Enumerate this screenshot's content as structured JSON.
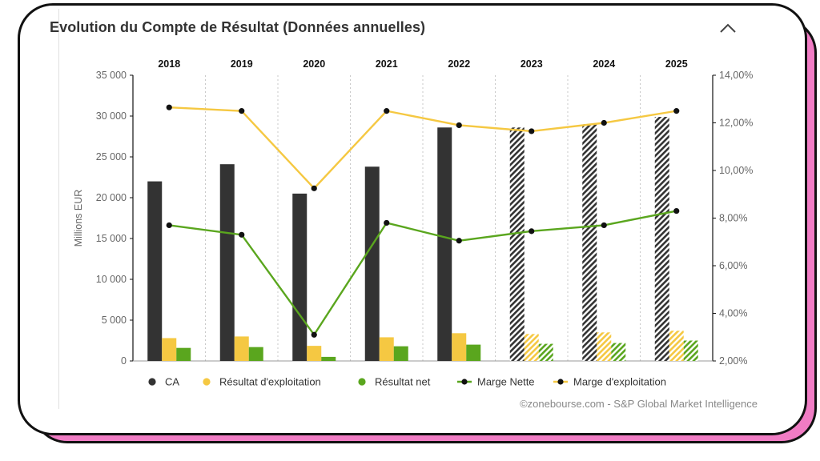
{
  "header": {
    "title": "Evolution du Compte de Résultat (Données annuelles)",
    "collapse_icon": "chevron-up-icon"
  },
  "chart_data": {
    "type": "bar",
    "title": "Evolution du Compte de Résultat (Données annuelles)",
    "categories": [
      "2018",
      "2019",
      "2020",
      "2021",
      "2022",
      "2023",
      "2024",
      "2025"
    ],
    "estimated_from_index": 5,
    "ylabel": "Millions EUR",
    "ylim": [
      0,
      35000
    ],
    "y_ticks": [
      "0",
      "5 000",
      "10 000",
      "15 000",
      "20 000",
      "25 000",
      "30 000",
      "35 000"
    ],
    "y2lim": [
      2,
      14
    ],
    "y2_ticks": [
      "2,00%",
      "4,00%",
      "6,00%",
      "8,00%",
      "10,00%",
      "12,00%",
      "14,00%"
    ],
    "grid": "vertical dotted separators between years",
    "legend_position": "bottom",
    "series": [
      {
        "name": "CA",
        "kind": "bar",
        "axis": "left",
        "color": "#333333",
        "values": [
          22000,
          24100,
          20500,
          23800,
          28600,
          28600,
          29000,
          29900
        ]
      },
      {
        "name": "Résultat d'exploitation",
        "kind": "bar",
        "axis": "left",
        "color": "#f5c842",
        "values": [
          2800,
          3000,
          1850,
          2900,
          3400,
          3300,
          3500,
          3700
        ]
      },
      {
        "name": "Résultat net",
        "kind": "bar",
        "axis": "left",
        "color": "#5aa61e",
        "values": [
          1600,
          1700,
          500,
          1800,
          2000,
          2100,
          2200,
          2500
        ]
      },
      {
        "name": "Marge Nette",
        "kind": "line",
        "axis": "right",
        "color": "#5aa61e",
        "values": [
          7.7,
          7.3,
          3.1,
          7.8,
          7.05,
          7.45,
          7.7,
          8.3
        ]
      },
      {
        "name": "Marge d'exploitation",
        "kind": "line",
        "axis": "right",
        "color": "#f5c842",
        "values": [
          12.65,
          12.5,
          9.25,
          12.5,
          11.9,
          11.65,
          12.0,
          12.5
        ]
      }
    ],
    "credit": "©zonebourse.com - S&P Global Market Intelligence"
  }
}
